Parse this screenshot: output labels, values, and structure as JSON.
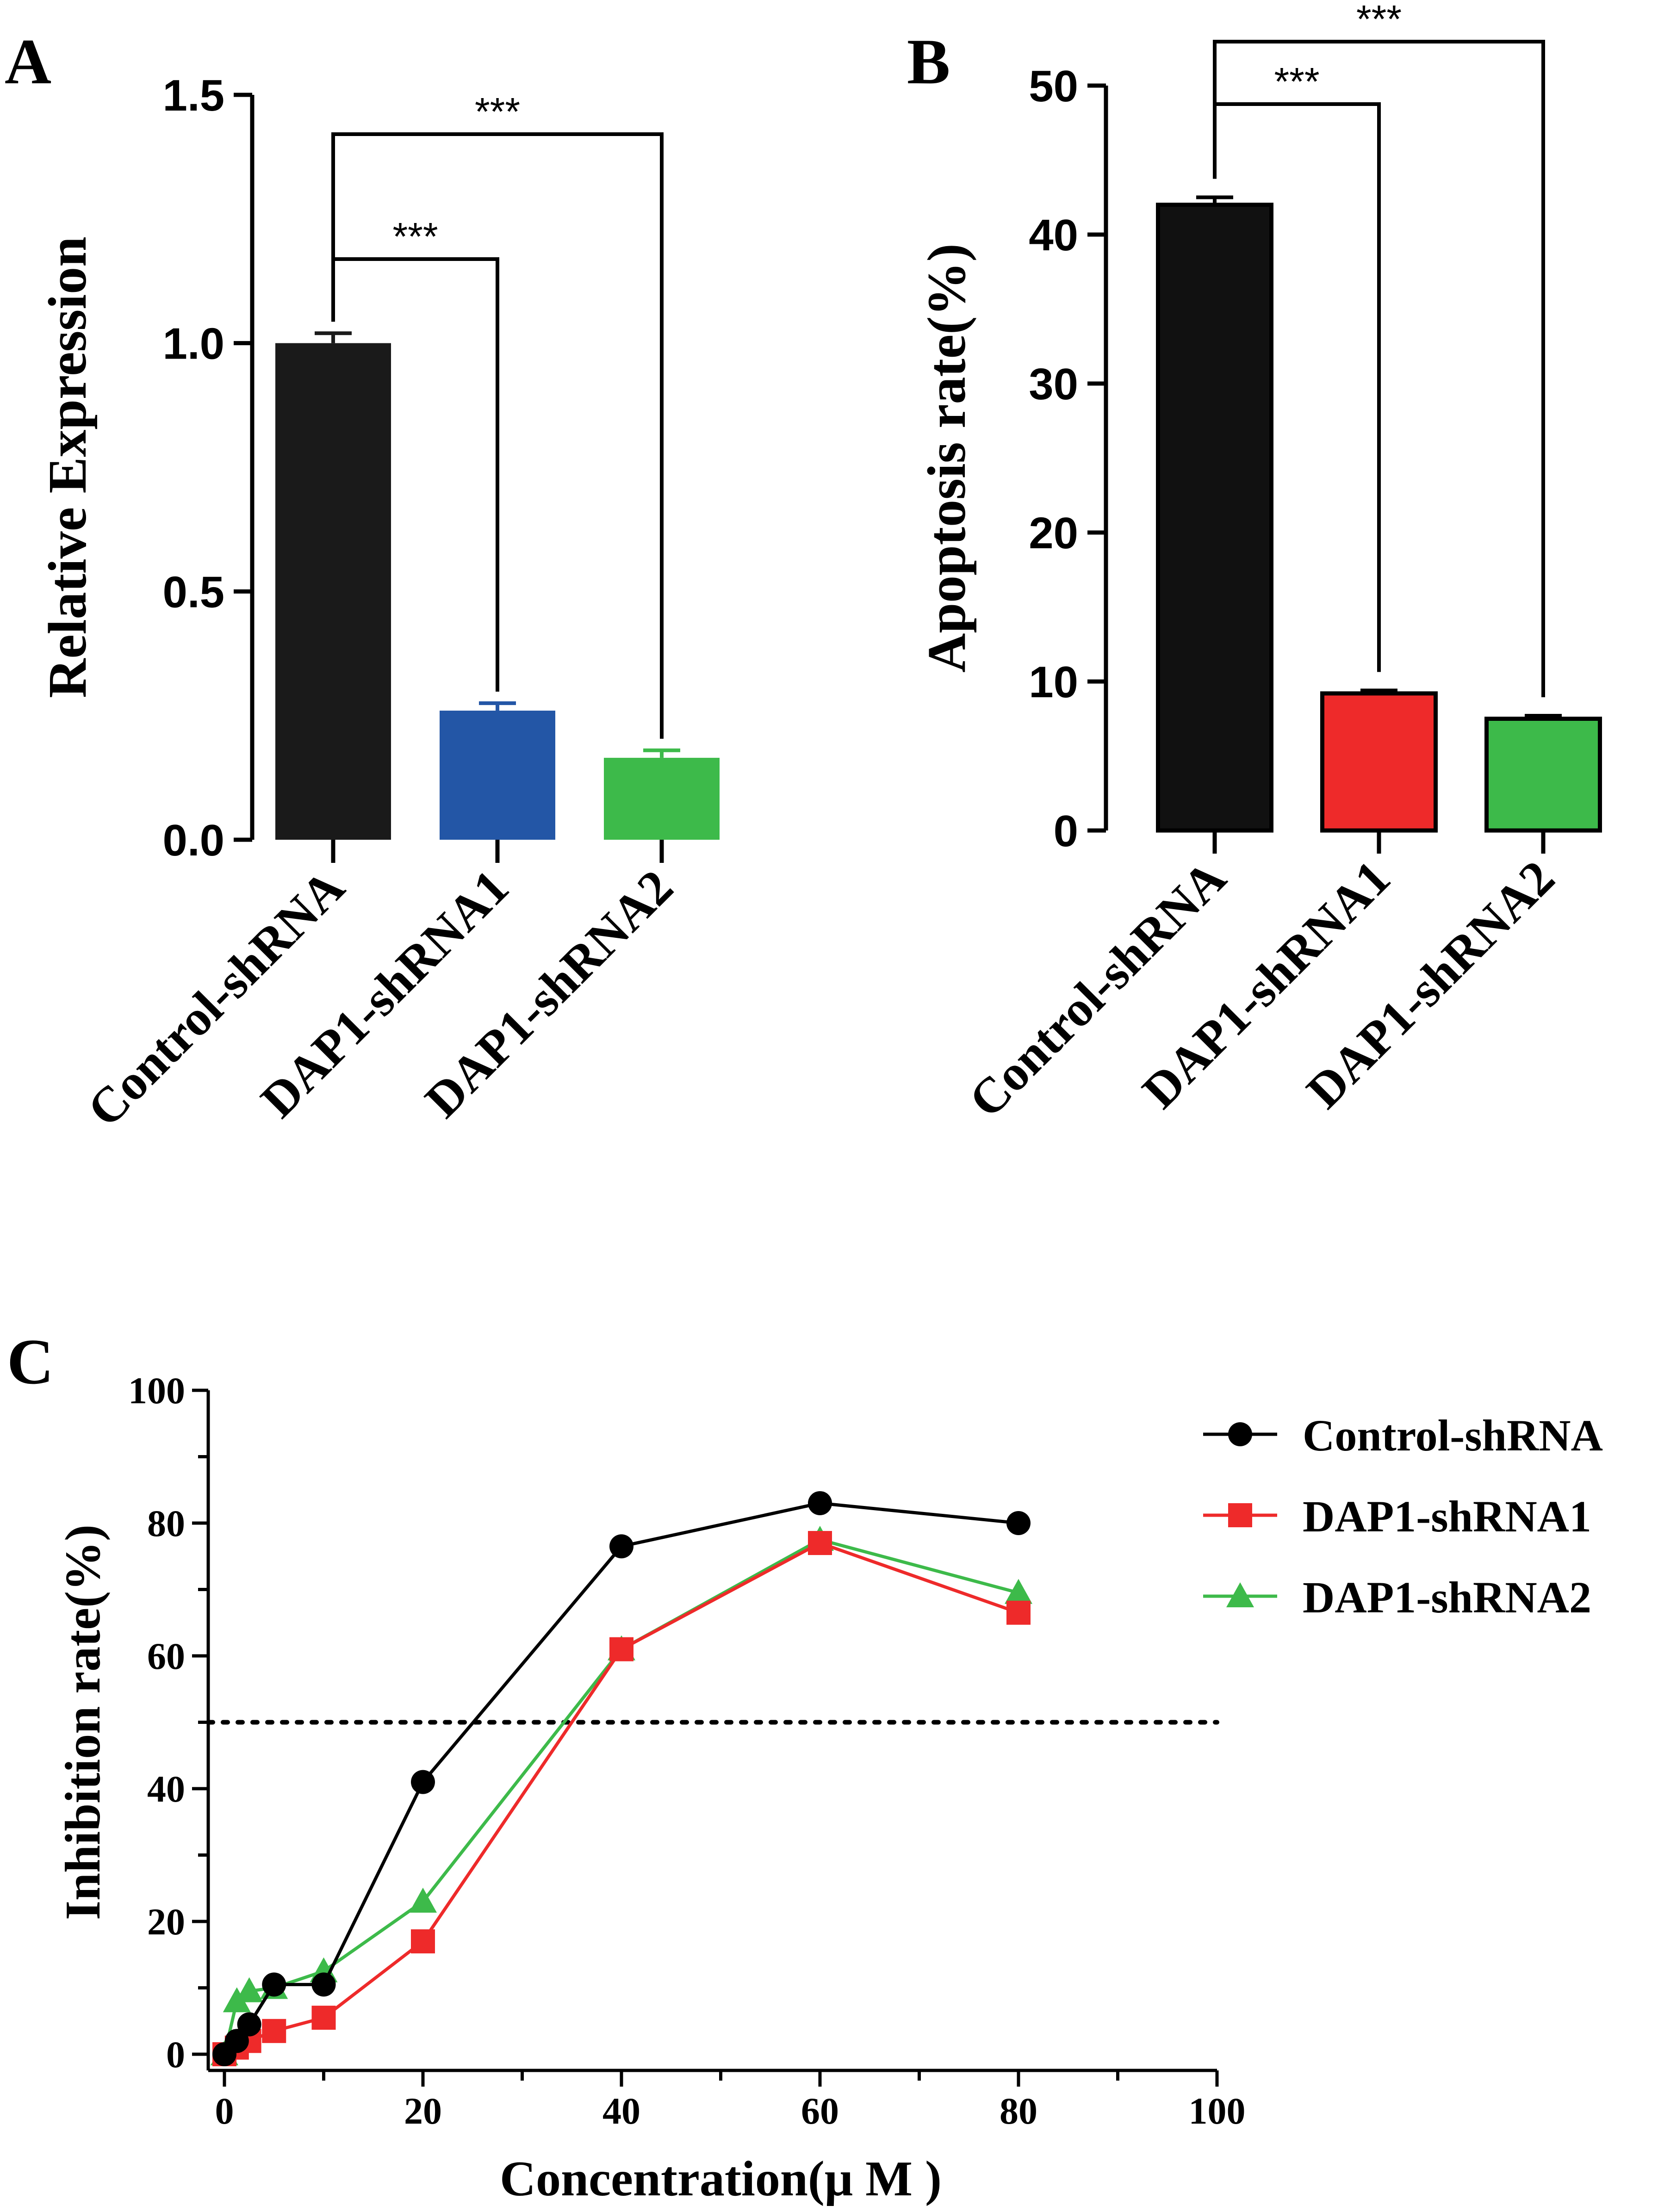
{
  "panels": {
    "A": "A",
    "B": "B",
    "C": "C"
  },
  "chart_data": [
    {
      "type": "bar",
      "panel": "A",
      "ylabel": "Relative Expression",
      "ylim": [
        0,
        1.5
      ],
      "yticks": [
        "0.0",
        "0.5",
        "1.0",
        "1.5"
      ],
      "categories": [
        "Control-shRNA",
        "DAP1-shRNA1",
        "DAP1-shRNA2"
      ],
      "values": [
        1.0,
        0.26,
        0.165
      ],
      "errors": [
        0.02,
        0.015,
        0.015
      ],
      "colors": [
        "#1a1a1a",
        "#2356a6",
        "#3dba4a"
      ],
      "significance": [
        {
          "from": 0,
          "to": 1,
          "label": "***"
        },
        {
          "from": 0,
          "to": 2,
          "label": "***"
        }
      ]
    },
    {
      "type": "bar",
      "panel": "B",
      "ylabel": "Apoptosis rate(%)",
      "ylim": [
        0,
        50
      ],
      "yticks": [
        "0",
        "10",
        "20",
        "30",
        "40",
        "50"
      ],
      "categories": [
        "Control-shRNA",
        "DAP1-shRNA1",
        "DAP1-shRNA2"
      ],
      "values": [
        42,
        9.2,
        7.5
      ],
      "errors": [
        0.5,
        0.2,
        0.2
      ],
      "colors": [
        "#111111",
        "#ee2a2a",
        "#3dba4a"
      ],
      "significance": [
        {
          "from": 0,
          "to": 1,
          "label": "***"
        },
        {
          "from": 0,
          "to": 2,
          "label": "***"
        }
      ]
    },
    {
      "type": "line",
      "panel": "C",
      "xlabel": "Concentration(μ M )",
      "ylabel": "Inhibition rate(%)",
      "xlim": [
        0,
        100
      ],
      "ylim": [
        0,
        100
      ],
      "xticks": [
        "0",
        "20",
        "40",
        "60",
        "80",
        "100"
      ],
      "yticks": [
        "0",
        "20",
        "40",
        "60",
        "80",
        "100"
      ],
      "reference_line": 50,
      "x": [
        0,
        1.25,
        2.5,
        5,
        10,
        20,
        40,
        60,
        80
      ],
      "series": [
        {
          "name": "Control-shRNA",
          "color": "#000000",
          "marker": "circle",
          "values": [
            0,
            2,
            4.5,
            10.5,
            10.5,
            41,
            76.5,
            83,
            80
          ]
        },
        {
          "name": "DAP1-shRNA1",
          "color": "#ee2a2a",
          "marker": "square",
          "values": [
            0,
            1,
            2,
            3.5,
            5.5,
            17,
            61,
            77,
            66.5
          ]
        },
        {
          "name": "DAP1-shRNA2",
          "color": "#3dba4a",
          "marker": "triangle",
          "values": [
            0,
            8,
            9.5,
            10,
            12.5,
            23,
            61,
            77.5,
            69.5
          ]
        }
      ]
    }
  ]
}
